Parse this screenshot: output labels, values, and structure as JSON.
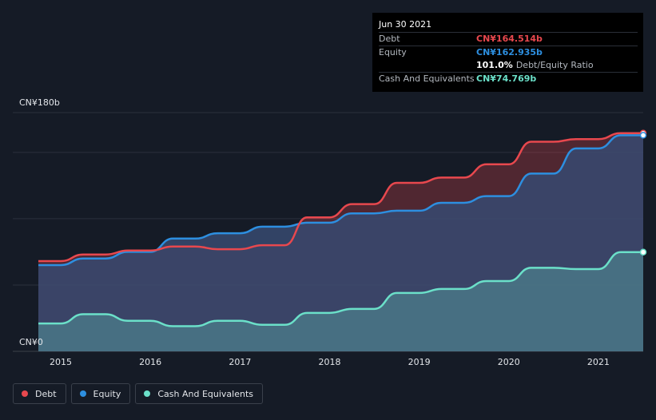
{
  "tooltip": {
    "date": "Jun 30 2021",
    "rows": [
      {
        "label": "Debt",
        "value": "CN¥164.514b"
      },
      {
        "label": "Equity",
        "value": "CN¥162.935b"
      }
    ],
    "ratio_value": "101.0%",
    "ratio_label": "Debt/Equity Ratio",
    "cash": {
      "label": "Cash And Equivalents",
      "value": "CN¥74.769b"
    }
  },
  "colors": {
    "debt": "#e8484e",
    "equity": "#2d8fe0",
    "cash": "#6be0c9",
    "background": "#151b26"
  },
  "chart_data": {
    "type": "area",
    "ylabel_top": "CN¥180b",
    "ylabel_bottom": "CN¥0",
    "ylim": [
      0,
      180
    ],
    "xlim": [
      2014.75,
      2021.5
    ],
    "x_ticks": [
      "2015",
      "2016",
      "2017",
      "2018",
      "2019",
      "2020",
      "2021"
    ],
    "x": [
      2014.75,
      2015.0,
      2015.25,
      2015.5,
      2015.75,
      2016.0,
      2016.25,
      2016.5,
      2016.75,
      2017.0,
      2017.25,
      2017.5,
      2017.75,
      2018.0,
      2018.25,
      2018.5,
      2018.75,
      2019.0,
      2019.25,
      2019.5,
      2019.75,
      2020.0,
      2020.25,
      2020.5,
      2020.75,
      2021.0,
      2021.25,
      2021.5
    ],
    "series": [
      {
        "name": "Debt",
        "values": [
          68,
          68,
          73,
          73,
          76,
          76,
          79,
          79,
          77,
          77,
          80,
          80,
          101,
          101,
          111,
          111,
          127,
          127,
          131,
          131,
          141,
          141,
          158,
          158,
          160,
          160,
          164.5,
          164.5
        ]
      },
      {
        "name": "Equity",
        "values": [
          65,
          65,
          70,
          70,
          75,
          75,
          85,
          85,
          89,
          89,
          94,
          94,
          97,
          97,
          104,
          104,
          106,
          106,
          112,
          112,
          117,
          117,
          134,
          134,
          153,
          153,
          162.9,
          162.9
        ]
      },
      {
        "name": "Cash And Equivalents",
        "values": [
          21,
          21,
          28,
          28,
          23,
          23,
          19,
          19,
          23,
          23,
          20,
          20,
          29,
          29,
          32,
          32,
          44,
          44,
          47,
          47,
          53,
          53,
          63,
          63,
          62,
          62,
          74.8,
          74.8
        ]
      }
    ],
    "legend": [
      "Debt",
      "Equity",
      "Cash And Equivalents"
    ],
    "legend_position": "bottom-left",
    "grid": true
  }
}
